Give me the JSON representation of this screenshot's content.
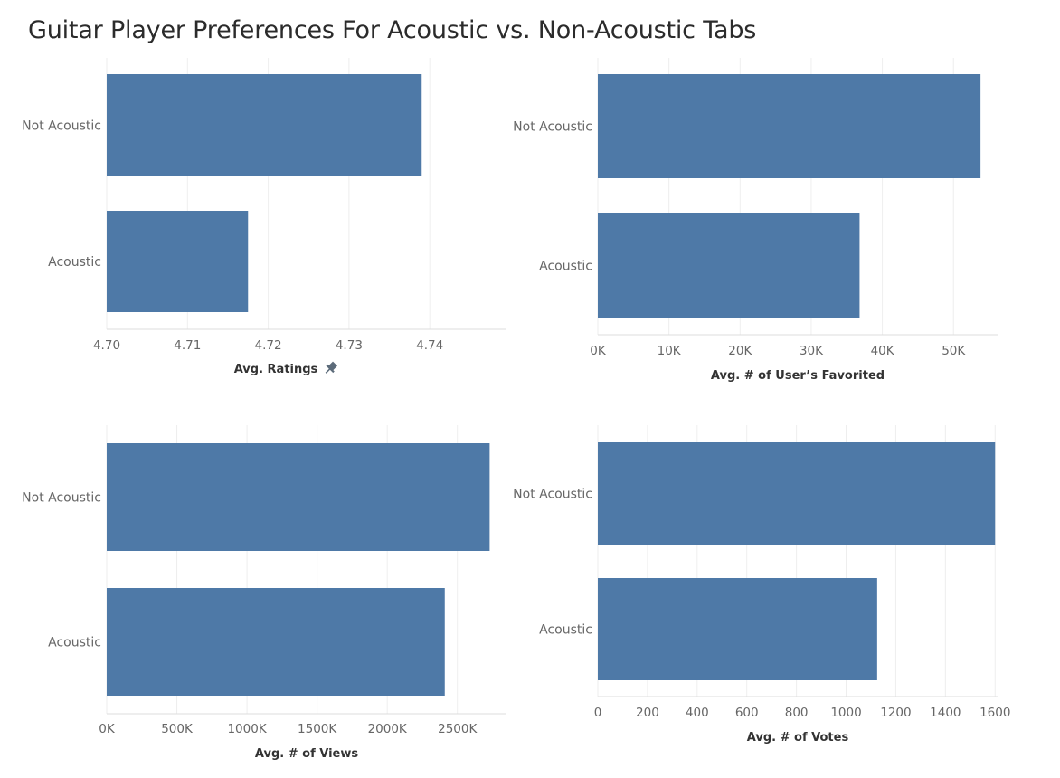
{
  "page": {
    "title": "Guitar Player Preferences For Acoustic vs. Non-Acoustic Tabs"
  },
  "colors": {
    "bar": "#4e79a7"
  },
  "chart_data": [
    {
      "type": "bar",
      "orientation": "horizontal",
      "categories": [
        "Not Acoustic",
        "Acoustic"
      ],
      "values": [
        4.739,
        4.7175
      ],
      "xlabel": "Avg. Ratings",
      "xlabel_icon": "pin-icon",
      "xlim": [
        4.7,
        4.7495
      ],
      "ticks": [
        4.7,
        4.71,
        4.72,
        4.73,
        4.74
      ],
      "tick_labels": [
        "4.70",
        "4.71",
        "4.72",
        "4.73",
        "4.74"
      ],
      "grid": true
    },
    {
      "type": "bar",
      "orientation": "horizontal",
      "categories": [
        "Not Acoustic",
        "Acoustic"
      ],
      "values": [
        53800,
        36800
      ],
      "xlabel": "Avg. # of User’s Favorited",
      "xlim": [
        0,
        56200
      ],
      "ticks": [
        0,
        10000,
        20000,
        30000,
        40000,
        50000
      ],
      "tick_labels": [
        "0K",
        "10K",
        "20K",
        "30K",
        "40K",
        "50K"
      ],
      "grid": true
    },
    {
      "type": "bar",
      "orientation": "horizontal",
      "categories": [
        "Not Acoustic",
        "Acoustic"
      ],
      "values": [
        2730000,
        2410000
      ],
      "xlabel": "Avg. # of Views",
      "xlim": [
        0,
        2850000
      ],
      "ticks": [
        0,
        500000,
        1000000,
        1500000,
        2000000,
        2500000
      ],
      "tick_labels": [
        "0K",
        "500K",
        "1000K",
        "1500K",
        "2000K",
        "2500K"
      ],
      "grid": true
    },
    {
      "type": "bar",
      "orientation": "horizontal",
      "categories": [
        "Not Acoustic",
        "Acoustic"
      ],
      "values": [
        1600,
        1125
      ],
      "xlabel": "Avg. # of Votes",
      "xlim": [
        0,
        1610
      ],
      "ticks": [
        0,
        200,
        400,
        600,
        800,
        1000,
        1200,
        1400,
        1600
      ],
      "tick_labels": [
        "0",
        "200",
        "400",
        "600",
        "800",
        "1000",
        "1200",
        "1400",
        "1600"
      ],
      "grid": true
    }
  ]
}
